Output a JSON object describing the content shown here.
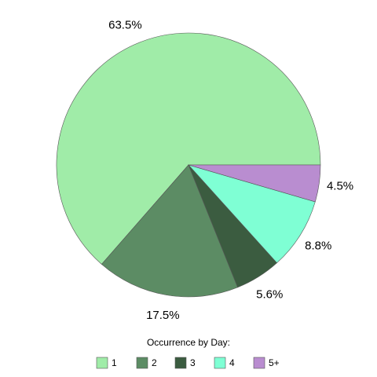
{
  "chart_data": {
    "type": "pie",
    "legend_title": "Occurrence by Day:",
    "categories": [
      "1",
      "2",
      "3",
      "4",
      "5+"
    ],
    "values": [
      63.5,
      17.5,
      5.6,
      8.8,
      4.5
    ],
    "value_labels": [
      "63.5%",
      "17.5%",
      "5.6%",
      "8.8%",
      "4.5%"
    ],
    "colors": [
      "#a0eca8",
      "#5c8c64",
      "#3b5c40",
      "#7fffd4",
      "#b98dd0"
    ],
    "legend": "bottom"
  }
}
